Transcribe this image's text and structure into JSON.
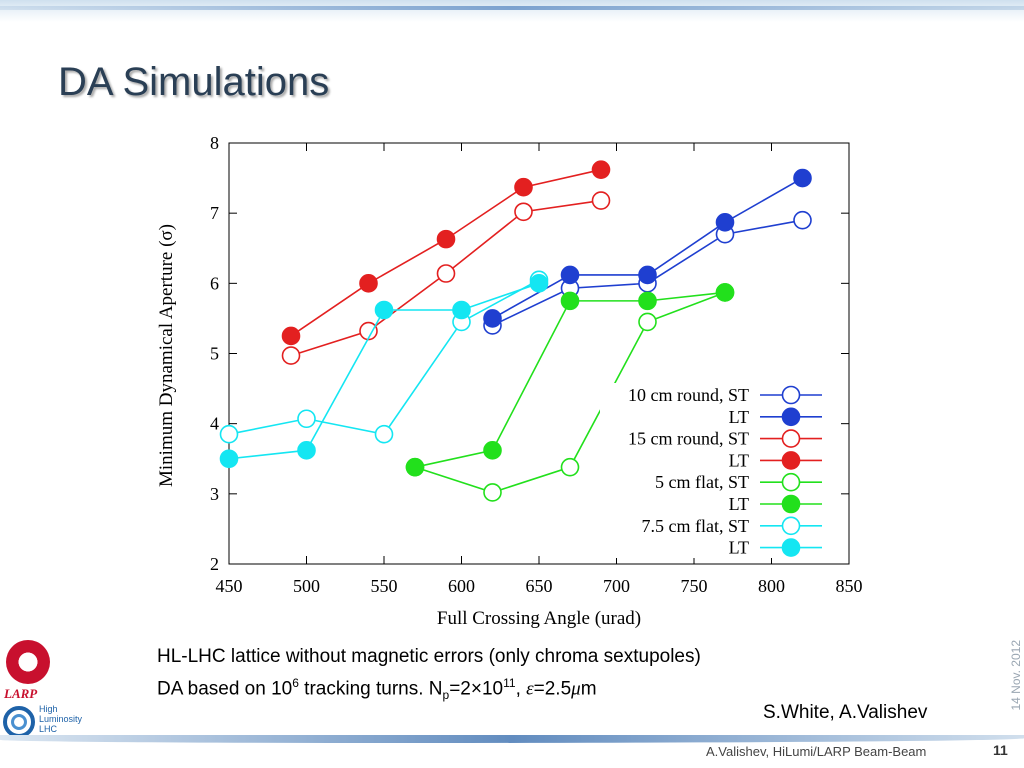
{
  "slide": {
    "title": "DA Simulations",
    "caption_line1": "HL-LHC lattice without magnetic errors (only chroma sextupoles)",
    "caption_line2_a": "DA based on 10",
    "caption_line2_sup1": "6",
    "caption_line2_b": " tracking turns. N",
    "caption_line2_sub": "p",
    "caption_line2_c": "=2×10",
    "caption_line2_sup2": "11",
    "caption_line2_d": ", ",
    "caption_eps": "ε",
    "caption_line2_e": "=2.5",
    "caption_mu": "μ",
    "caption_line2_f": "m",
    "authors": "S.White, A.Valishev",
    "date": "14 Nov. 2012",
    "footer": "A.Valishev, HiLumi/LARP Beam-Beam",
    "page_number": "11",
    "logos": {
      "larp": "LARP",
      "hl_line1": "High",
      "hl_line2": "Luminosity",
      "hl_line3": "LHC"
    }
  },
  "chart_data": {
    "type": "line",
    "xlabel": "Full Crossing Angle (urad)",
    "ylabel": "Minimum Dynamical Aperture (σ)",
    "xlim": [
      450,
      850
    ],
    "ylim": [
      2,
      8
    ],
    "xticks": [
      450,
      500,
      550,
      600,
      650,
      700,
      750,
      800,
      850
    ],
    "yticks": [
      2,
      3,
      4,
      5,
      6,
      7,
      8
    ],
    "legend_position": "bottom-right",
    "grid": false,
    "series": [
      {
        "name": "10 cm round, ST",
        "color": "#1f3fd0",
        "filled": false,
        "x": [
          620,
          670,
          720,
          770,
          820
        ],
        "y": [
          5.4,
          5.93,
          6.0,
          6.7,
          6.9
        ]
      },
      {
        "name": "LT",
        "color": "#1f3fd0",
        "filled": true,
        "x": [
          620,
          670,
          720,
          770,
          820
        ],
        "y": [
          5.5,
          6.12,
          6.12,
          6.87,
          7.5
        ]
      },
      {
        "name": "15 cm round, ST",
        "color": "#e32020",
        "filled": false,
        "x": [
          490,
          540,
          590,
          640,
          690
        ],
        "y": [
          4.97,
          5.32,
          6.14,
          7.02,
          7.18
        ]
      },
      {
        "name": "LT",
        "color": "#e32020",
        "filled": true,
        "x": [
          490,
          540,
          590,
          640,
          690
        ],
        "y": [
          5.25,
          6.0,
          6.63,
          7.37,
          7.62
        ]
      },
      {
        "name": "5 cm flat, ST",
        "color": "#22e01c",
        "filled": false,
        "x": [
          570,
          620,
          670,
          720,
          770
        ],
        "y": [
          3.38,
          3.02,
          3.38,
          5.45,
          5.87
        ]
      },
      {
        "name": "LT",
        "color": "#22e01c",
        "filled": true,
        "x": [
          570,
          620,
          670,
          720,
          770
        ],
        "y": [
          3.38,
          3.62,
          5.75,
          5.75,
          5.87
        ]
      },
      {
        "name": "7.5 cm flat, ST",
        "color": "#14e6f2",
        "filled": false,
        "x": [
          450,
          500,
          550,
          600,
          650
        ],
        "y": [
          3.85,
          4.07,
          3.85,
          5.45,
          6.05
        ]
      },
      {
        "name": "LT",
        "color": "#14e6f2",
        "filled": true,
        "x": [
          450,
          500,
          550,
          600,
          650
        ],
        "y": [
          3.5,
          3.62,
          5.62,
          5.62,
          6.0
        ]
      }
    ]
  }
}
